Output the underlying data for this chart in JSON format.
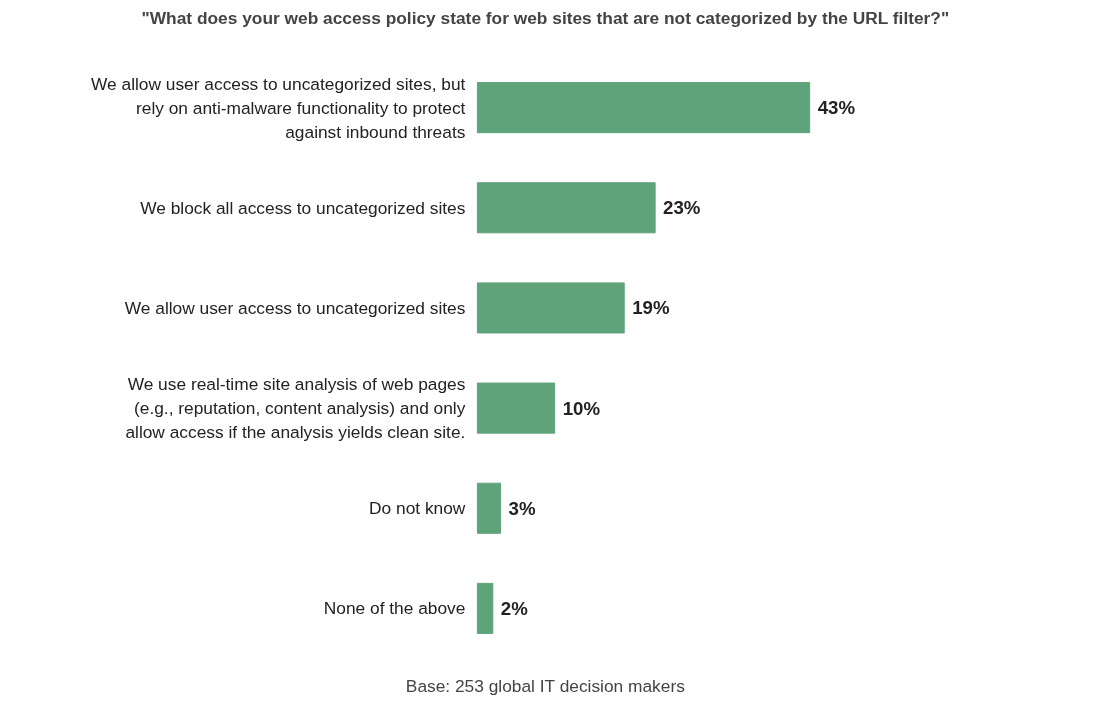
{
  "chart_data": {
    "type": "bar",
    "orientation": "horizontal",
    "title": "\"What does your web access policy state for web sites that are not categorized by the URL filter?\"",
    "categories": [
      "We allow user access to uncategorized sites, but rely on anti-malware functionality to protect against inbound threats",
      "We block all access to uncategorized sites",
      "We allow user access to uncategorized sites",
      "We use real-time site analysis of web pages (e.g., reputation, content analysis) and only allow access if the analysis yields clean site.",
      "Do not know",
      "None of the above"
    ],
    "values": [
      43,
      23,
      19,
      10,
      3,
      2
    ],
    "color": "#5fa37a",
    "value_labels": [
      "43%",
      "23%",
      "19%",
      "10%",
      "3%",
      "2%"
    ],
    "annotations": [
      "Base: 253 global IT decision makers"
    ]
  }
}
